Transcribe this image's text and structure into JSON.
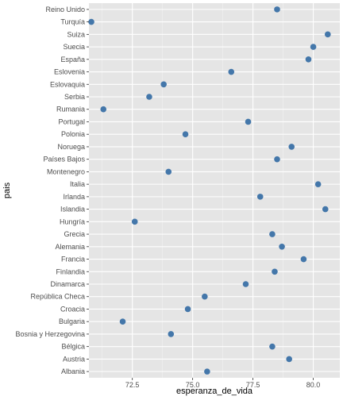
{
  "chart_data": {
    "type": "scatter",
    "xlabel": "esperanza_de_vida",
    "ylabel": "pais",
    "xlim": [
      70.7,
      81.1
    ],
    "x_ticks": [
      72.5,
      75.0,
      77.5,
      80.0
    ],
    "x_tick_labels": [
      "72.5",
      "75.0",
      "77.5",
      "80.0"
    ],
    "grid": true,
    "background": "#e5e5e5",
    "point_color": "#4477aa",
    "categories": [
      "Albania",
      "Austria",
      "Bélgica",
      "Bosnia y Herzegovina",
      "Bulgaria",
      "Croacia",
      "República Checa",
      "Dinamarca",
      "Finlandia",
      "Francia",
      "Alemania",
      "Grecia",
      "Hungría",
      "Islandia",
      "Irlanda",
      "Italia",
      "Montenegro",
      "Países Bajos",
      "Noruega",
      "Polonia",
      "Portugal",
      "Rumania",
      "Serbia",
      "Eslovaquia",
      "Eslovenia",
      "España",
      "Suecia",
      "Suiza",
      "Turquía",
      "Reino Unido"
    ],
    "values": [
      75.6,
      79.0,
      78.3,
      74.1,
      72.1,
      74.8,
      75.5,
      77.2,
      78.4,
      79.6,
      78.7,
      78.3,
      72.6,
      80.5,
      77.8,
      80.2,
      74.0,
      78.5,
      79.1,
      74.7,
      77.3,
      71.3,
      73.2,
      73.8,
      76.6,
      79.8,
      80.0,
      80.6,
      70.8,
      78.5
    ]
  }
}
